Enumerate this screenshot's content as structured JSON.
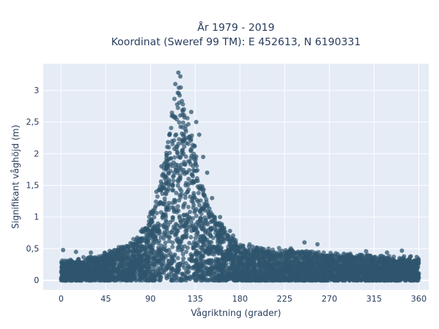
{
  "chart_data": {
    "type": "scatter",
    "title_lines": [
      "År 1979 - 2019",
      "Koordinat (Sweref 99 TM): E 452613, N 6190331"
    ],
    "xlabel": "Vågriktning (grader)",
    "ylabel": "Signifikant våghöjd (m)",
    "xlim": [
      -18,
      370
    ],
    "ylim": [
      -0.15,
      3.42
    ],
    "x_ticks": [
      0,
      45,
      90,
      135,
      180,
      225,
      270,
      315,
      360
    ],
    "x_tick_labels": [
      "0",
      "45",
      "90",
      "135",
      "180",
      "225",
      "270",
      "315",
      "360"
    ],
    "y_ticks": [
      0,
      0.5,
      1,
      1.5,
      2,
      2.5,
      3
    ],
    "y_tick_labels": [
      "0",
      "0,5",
      "1",
      "1,5",
      "2",
      "2,5",
      "3"
    ],
    "grid": true,
    "marker_color": "#2f566d",
    "plot_bg": "#e5ecf6",
    "envelope": {
      "x": [
        0,
        15,
        30,
        45,
        60,
        75,
        85,
        95,
        105,
        112,
        118,
        122,
        126,
        130,
        135,
        140,
        150,
        165,
        180,
        200,
        225,
        250,
        270,
        290,
        315,
        335,
        360
      ],
      "y": [
        0.3,
        0.32,
        0.35,
        0.42,
        0.52,
        0.65,
        0.85,
        1.25,
        1.95,
        2.75,
        3.2,
        3.05,
        2.7,
        2.4,
        2.1,
        1.6,
        1.15,
        0.8,
        0.58,
        0.5,
        0.48,
        0.45,
        0.42,
        0.4,
        0.38,
        0.36,
        0.32
      ]
    },
    "outliers": [
      {
        "x": 118,
        "y": 3.28
      },
      {
        "x": 120,
        "y": 3.22
      },
      {
        "x": 115,
        "y": 3.1
      },
      {
        "x": 131,
        "y": 2.66
      },
      {
        "x": 136,
        "y": 2.5
      },
      {
        "x": 139,
        "y": 2.3
      },
      {
        "x": 143,
        "y": 1.95
      },
      {
        "x": 147,
        "y": 1.7
      },
      {
        "x": 152,
        "y": 1.3
      },
      {
        "x": 160,
        "y": 1.0
      },
      {
        "x": 170,
        "y": 0.78
      },
      {
        "x": 2,
        "y": 0.48
      },
      {
        "x": 15,
        "y": 0.45
      },
      {
        "x": 30,
        "y": 0.44
      },
      {
        "x": 245,
        "y": 0.6
      },
      {
        "x": 258,
        "y": 0.57
      },
      {
        "x": 307,
        "y": 0.46
      },
      {
        "x": 328,
        "y": 0.44
      },
      {
        "x": 343,
        "y": 0.47
      },
      {
        "x": 352,
        "y": 0.38
      },
      {
        "x": 358,
        "y": 0.37
      },
      {
        "x": 96,
        "y": 1.4
      },
      {
        "x": 101,
        "y": 1.8
      },
      {
        "x": 92,
        "y": 1.05
      }
    ]
  }
}
